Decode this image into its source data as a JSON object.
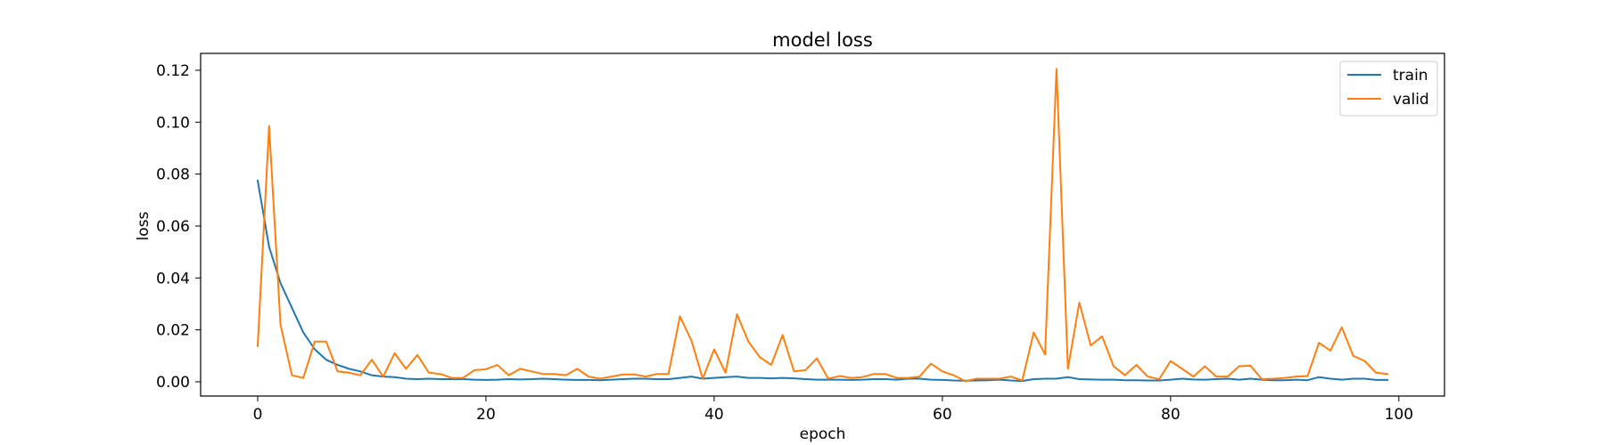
{
  "chart_data": {
    "type": "line",
    "title": "model loss",
    "xlabel": "epoch",
    "ylabel": "loss",
    "xlim": [
      -5,
      104
    ],
    "ylim": [
      -0.0055,
      0.1265
    ],
    "xticks": [
      0,
      20,
      40,
      60,
      80,
      100
    ],
    "xtick_labels": [
      "0",
      "20",
      "40",
      "60",
      "80",
      "100"
    ],
    "yticks": [
      0.0,
      0.02,
      0.04,
      0.06,
      0.08,
      0.1,
      0.12
    ],
    "ytick_labels": [
      "0.00",
      "0.02",
      "0.04",
      "0.06",
      "0.08",
      "0.10",
      "0.12"
    ],
    "grid": false,
    "legend_position": "top-right",
    "series": [
      {
        "name": "train",
        "color": "#1f77b4",
        "values": [
          0.0775,
          0.052,
          0.038,
          0.0285,
          0.019,
          0.0125,
          0.0085,
          0.0065,
          0.005,
          0.004,
          0.0025,
          0.002,
          0.0018,
          0.0012,
          0.001,
          0.0012,
          0.001,
          0.001,
          0.001,
          0.0008,
          0.0007,
          0.0008,
          0.001,
          0.0009,
          0.001,
          0.0012,
          0.001,
          0.0008,
          0.0007,
          0.0007,
          0.0006,
          0.0008,
          0.001,
          0.0012,
          0.0012,
          0.001,
          0.001,
          0.0015,
          0.002,
          0.0012,
          0.0015,
          0.0018,
          0.002,
          0.0015,
          0.0015,
          0.0013,
          0.0015,
          0.0013,
          0.001,
          0.0008,
          0.0008,
          0.0008,
          0.0007,
          0.0008,
          0.001,
          0.001,
          0.0008,
          0.0012,
          0.0012,
          0.0008,
          0.0007,
          0.0005,
          0.0004,
          0.0005,
          0.0006,
          0.0008,
          0.0005,
          0.0003,
          0.001,
          0.0012,
          0.0012,
          0.0018,
          0.001,
          0.0009,
          0.0008,
          0.0008,
          0.0006,
          0.0006,
          0.0005,
          0.0005,
          0.0008,
          0.0012,
          0.0009,
          0.0008,
          0.001,
          0.0012,
          0.0008,
          0.0012,
          0.0008,
          0.0006,
          0.0006,
          0.0008,
          0.0006,
          0.0018,
          0.0012,
          0.0008,
          0.0012,
          0.0012,
          0.0007,
          0.0007
        ]
      },
      {
        "name": "valid",
        "color": "#ff7f0e",
        "values": [
          0.0138,
          0.0985,
          0.022,
          0.0025,
          0.0015,
          0.0155,
          0.0155,
          0.004,
          0.0035,
          0.0025,
          0.0085,
          0.002,
          0.011,
          0.005,
          0.0103,
          0.0035,
          0.003,
          0.0015,
          0.0015,
          0.0045,
          0.0048,
          0.0065,
          0.0025,
          0.005,
          0.004,
          0.003,
          0.003,
          0.0025,
          0.005,
          0.002,
          0.0012,
          0.002,
          0.0028,
          0.0028,
          0.002,
          0.003,
          0.003,
          0.0252,
          0.016,
          0.0012,
          0.0125,
          0.0035,
          0.026,
          0.0155,
          0.0095,
          0.0065,
          0.018,
          0.004,
          0.0045,
          0.009,
          0.0012,
          0.0022,
          0.0015,
          0.0018,
          0.003,
          0.003,
          0.0015,
          0.0015,
          0.002,
          0.007,
          0.004,
          0.0025,
          0.0002,
          0.0012,
          0.0012,
          0.0012,
          0.002,
          0.0005,
          0.019,
          0.0105,
          0.1205,
          0.005,
          0.0305,
          0.014,
          0.0175,
          0.006,
          0.0025,
          0.0065,
          0.002,
          0.001,
          0.008,
          0.005,
          0.002,
          0.006,
          0.002,
          0.002,
          0.006,
          0.0062,
          0.001,
          0.0012,
          0.0015,
          0.002,
          0.0022,
          0.015,
          0.012,
          0.021,
          0.01,
          0.008,
          0.0035,
          0.003
        ]
      }
    ]
  }
}
